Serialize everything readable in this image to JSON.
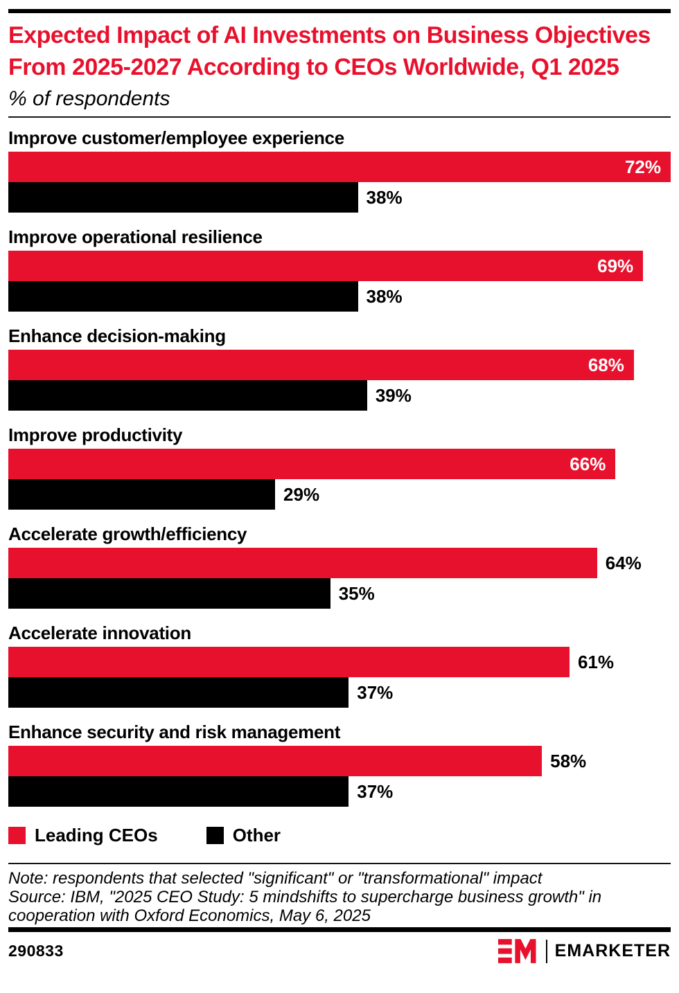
{
  "colors": {
    "red": "#e8112d",
    "black": "#000000"
  },
  "header": {
    "title": "Expected Impact of AI Investments on Business Objectives From 2025-2027 According to CEOs Worldwide, Q1 2025",
    "subtitle": "% of respondents"
  },
  "chart_data": {
    "type": "bar",
    "orientation": "horizontal",
    "unit": "%",
    "axis_max": 72,
    "grid": false,
    "legend_position": "bottom",
    "categories": [
      "Improve customer/employee experience",
      "Improve operational resilience",
      "Enhance decision-making",
      "Improve productivity",
      "Accelerate growth/efficiency",
      "Accelerate innovation",
      "Enhance security and risk management"
    ],
    "series": [
      {
        "name": "Leading CEOs",
        "color": "#e8112d",
        "values": [
          72,
          69,
          68,
          66,
          64,
          61,
          58
        ],
        "label_inside": [
          true,
          true,
          true,
          true,
          false,
          false,
          false
        ]
      },
      {
        "name": "Other",
        "color": "#000000",
        "values": [
          38,
          38,
          39,
          29,
          35,
          37,
          37
        ],
        "label_inside": [
          false,
          false,
          false,
          false,
          false,
          false,
          false
        ]
      }
    ]
  },
  "legend": [
    {
      "label": "Leading CEOs",
      "color": "#e8112d"
    },
    {
      "label": "Other",
      "color": "#000000"
    }
  ],
  "note_lines": [
    "Note: respondents that selected \"significant\" or \"transformational\" impact",
    "Source: IBM, \"2025 CEO Study: 5 mindshifts to supercharge business growth\" in cooperation with Oxford Economics, May 6, 2025"
  ],
  "footer": {
    "chart_id": "290833",
    "brand": "EMARKETER"
  }
}
